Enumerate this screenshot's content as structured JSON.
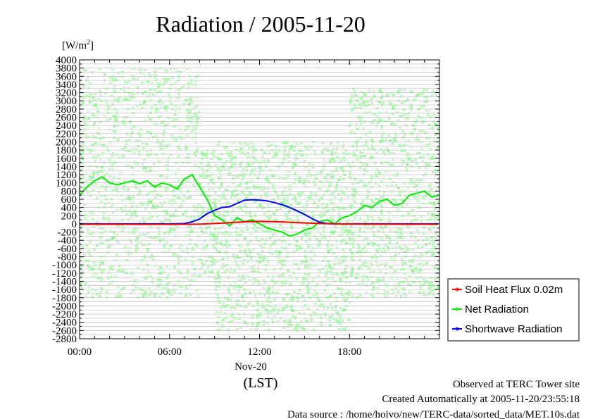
{
  "chart_data": {
    "type": "line",
    "title": "Radiation / 2005-11-20",
    "ylabel": "[W/m",
    "ylabel_sup": "2",
    "ylabel_close": "]",
    "xlabel": "(LST)",
    "date_label": "Nov-20",
    "ylim": [
      -2800,
      4000
    ],
    "yticks": [
      "4000",
      "3800",
      "3600",
      "3400",
      "3200",
      "3000",
      "2800",
      "2600",
      "2400",
      "2200",
      "2000",
      "1800",
      "1600",
      "1400",
      "1200",
      "1000",
      "800",
      "600",
      "400",
      "200",
      "0",
      "-200",
      "-400",
      "-600",
      "-800",
      "-1000",
      "-1200",
      "-1400",
      "-1600",
      "-1800",
      "-2000",
      "-2200",
      "-2400",
      "-2600",
      "-2800"
    ],
    "xlim": [
      0,
      24
    ],
    "xticks": [
      "00:00",
      "06:00",
      "12:00",
      "18:00"
    ],
    "grid": true,
    "legend_position": "right",
    "series": [
      {
        "name": "Soil Heat Flux 0.02m",
        "color": "#ff0000",
        "x": [
          0,
          2,
          4,
          6,
          7,
          8,
          9,
          10,
          11,
          12,
          13,
          14,
          15,
          16,
          17,
          18,
          20,
          22,
          23.9
        ],
        "y": [
          -10,
          -10,
          -12,
          -12,
          -10,
          -5,
          10,
          30,
          50,
          60,
          55,
          40,
          25,
          10,
          0,
          -5,
          -8,
          -10,
          -10
        ]
      },
      {
        "name": "Net Radiation",
        "color": "#00ee00",
        "x": [
          0,
          0.5,
          1,
          1.5,
          2,
          2.5,
          3,
          3.5,
          4,
          4.5,
          5,
          5.5,
          6,
          6.5,
          7,
          7.5,
          8,
          8.5,
          9,
          9.5,
          10,
          10.5,
          11,
          11.5,
          12,
          12.5,
          13,
          13.5,
          14,
          14.5,
          15,
          15.5,
          16,
          16.5,
          17,
          17.5,
          18,
          18.5,
          19,
          19.5,
          20,
          20.5,
          21,
          21.5,
          22,
          22.5,
          23,
          23.5,
          23.9
        ],
        "y": [
          700,
          900,
          1050,
          1150,
          1000,
          950,
          1000,
          1050,
          980,
          1050,
          900,
          1000,
          950,
          850,
          1100,
          1200,
          900,
          600,
          200,
          100,
          -50,
          150,
          50,
          100,
          0,
          -100,
          -150,
          -200,
          -300,
          -250,
          -150,
          -100,
          50,
          100,
          0,
          150,
          200,
          300,
          450,
          400,
          550,
          600,
          450,
          500,
          700,
          750,
          800,
          650,
          700
        ]
      },
      {
        "name": "Shortwave Radiation",
        "color": "#0000ff",
        "x": [
          0,
          2,
          4,
          6,
          7,
          7.5,
          8,
          8.5,
          9,
          9.5,
          10,
          10.5,
          11,
          11.5,
          12,
          12.5,
          13,
          13.5,
          14,
          14.5,
          15,
          15.5,
          16,
          16.5,
          17,
          18,
          20,
          22,
          23.9
        ],
        "y": [
          0,
          0,
          0,
          0,
          10,
          50,
          120,
          250,
          330,
          400,
          420,
          500,
          580,
          590,
          580,
          560,
          520,
          470,
          400,
          320,
          230,
          130,
          40,
          10,
          0,
          0,
          0,
          0,
          0
        ]
      }
    ],
    "scatter_series": {
      "color": "#7ff27f",
      "ranges": [
        {
          "x0": 0,
          "x1": 8.0,
          "ymin": -1800,
          "ymax": 3800,
          "count": 1100
        },
        {
          "x0": 8.0,
          "x1": 9.0,
          "ymin": -1300,
          "ymax": 1800,
          "count": 120
        },
        {
          "x0": 9.0,
          "x1": 18.0,
          "ymin": -2600,
          "ymax": 2000,
          "count": 1300
        },
        {
          "x0": 18.0,
          "x1": 24.0,
          "ymin": -1800,
          "ymax": 3300,
          "count": 900
        }
      ]
    }
  },
  "footer": {
    "line1": "Observed at TERC Tower site",
    "line2": "Created Automatically at 2005-11-20/23:55:18",
    "line3": "Data source : /home/hoivo/new/TERC-data/sorted_data/MET.10s.dat"
  }
}
